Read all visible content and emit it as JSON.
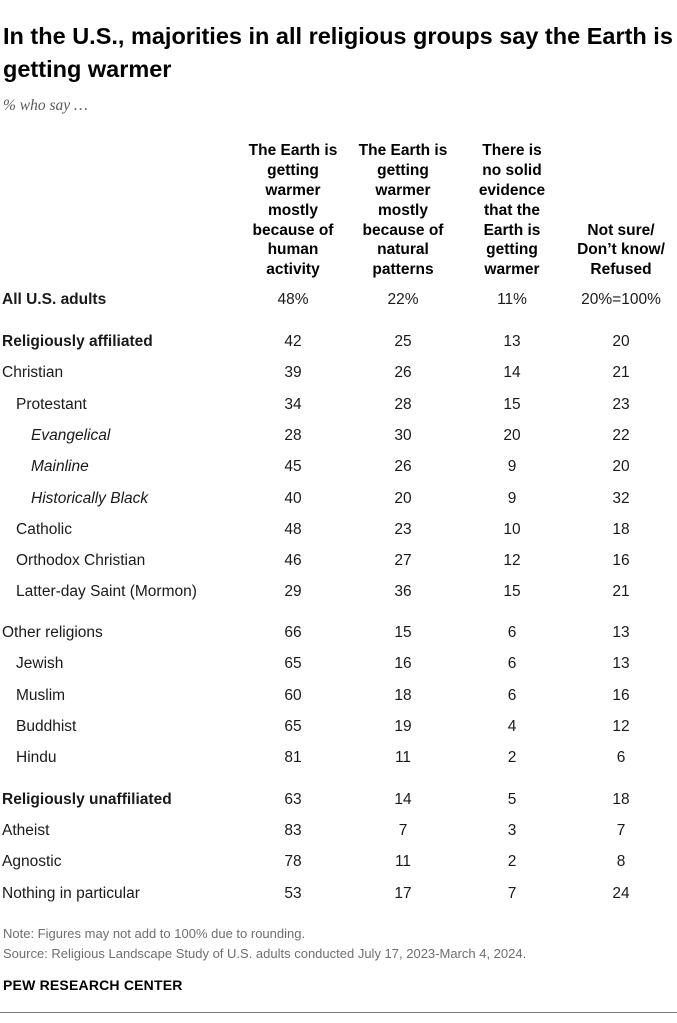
{
  "title": "In the U.S., majorities in all religious groups say the Earth is getting warmer",
  "subtitle": "% who say …",
  "chart_data": {
    "type": "table",
    "columns": [
      "The Earth is getting warmer mostly because of human activity",
      "The Earth is getting warmer mostly because of natural patterns",
      "There is no solid evidence that the Earth is getting warmer",
      "Not sure/ Don’t know/ Refused"
    ],
    "rows": [
      {
        "label": "All U.S. adults",
        "values": [
          "48%",
          "22%",
          "11%",
          "20%=100%"
        ]
      },
      {
        "label": "Religiously affiliated",
        "values": [
          "42",
          "25",
          "13",
          "20"
        ]
      },
      {
        "label": "Christian",
        "values": [
          "39",
          "26",
          "14",
          "21"
        ]
      },
      {
        "label": "Protestant",
        "values": [
          "34",
          "28",
          "15",
          "23"
        ]
      },
      {
        "label": "Evangelical",
        "values": [
          "28",
          "30",
          "20",
          "22"
        ]
      },
      {
        "label": "Mainline",
        "values": [
          "45",
          "26",
          "9",
          "20"
        ]
      },
      {
        "label": "Historically Black",
        "values": [
          "40",
          "20",
          "9",
          "32"
        ]
      },
      {
        "label": "Catholic",
        "values": [
          "48",
          "23",
          "10",
          "18"
        ]
      },
      {
        "label": "Orthodox Christian",
        "values": [
          "46",
          "27",
          "12",
          "16"
        ]
      },
      {
        "label": "Latter-day Saint (Mormon)",
        "values": [
          "29",
          "36",
          "15",
          "21"
        ]
      },
      {
        "label": "Other religions",
        "values": [
          "66",
          "15",
          "6",
          "13"
        ]
      },
      {
        "label": "Jewish",
        "values": [
          "65",
          "16",
          "6",
          "13"
        ]
      },
      {
        "label": "Muslim",
        "values": [
          "60",
          "18",
          "6",
          "16"
        ]
      },
      {
        "label": "Buddhist",
        "values": [
          "65",
          "19",
          "4",
          "12"
        ]
      },
      {
        "label": "Hindu",
        "values": [
          "81",
          "11",
          "2",
          "6"
        ]
      },
      {
        "label": "Religiously unaffiliated",
        "values": [
          "63",
          "14",
          "5",
          "18"
        ]
      },
      {
        "label": "Atheist",
        "values": [
          "83",
          "7",
          "3",
          "7"
        ]
      },
      {
        "label": "Agnostic",
        "values": [
          "78",
          "11",
          "2",
          "8"
        ]
      },
      {
        "label": "Nothing in particular",
        "values": [
          "53",
          "17",
          "7",
          "24"
        ]
      }
    ]
  },
  "note": "Note: Figures may not add to 100% due to rounding.",
  "source": "Source: Religious Landscape Study of U.S. adults conducted July 17, 2023-March 4, 2024.",
  "brand": "PEW RESEARCH CENTER"
}
